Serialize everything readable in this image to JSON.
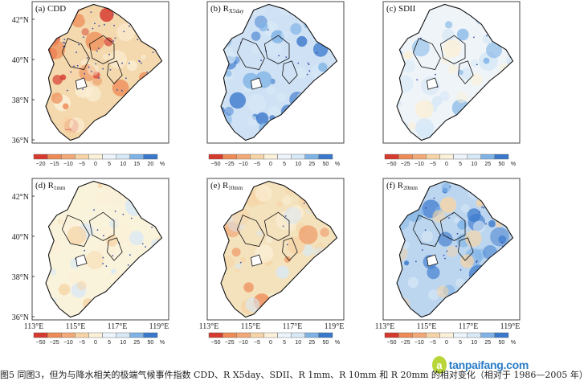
{
  "figure": {
    "caption": "图5 同图3，但为与降水相关的极端气候事件指数 CDD、R X5day、SDII、R 1mm、R 10mm 和 R 20mm 的相对变化（相对于 1986—2005 年）"
  },
  "watermark": {
    "logo": "a",
    "text": "tanpaifang.com"
  },
  "axes": {
    "lat_labels": [
      "42°N",
      "40°N",
      "38°N",
      "36°N"
    ],
    "lon_labels": [
      "113°E",
      "115°E",
      "117°E",
      "119°E"
    ]
  },
  "colors": {
    "dry_strong": "#d63a2e",
    "dry": "#ee8a55",
    "dry_light": "#f6d4a6",
    "neutral": "#fbf0d8",
    "wet_light": "#d7e8f6",
    "wet": "#7fb3e6",
    "wet_strong": "#3a78cc",
    "boundary": "#111111",
    "stipple": "#3a4fa8"
  },
  "panels": [
    {
      "id": "a",
      "title_prefix": "(a) ",
      "title_main": "CDD",
      "title_sub": "",
      "fill": "#f4d9ae",
      "colorbar": {
        "ticks": [
          "−20",
          "−15",
          "−10",
          "−5",
          "0",
          "5",
          "10",
          "15",
          "20",
          "%"
        ]
      }
    },
    {
      "id": "b",
      "title_prefix": "(b) R",
      "title_main": "",
      "title_sub": "X5day",
      "fill": "#cfe2f5",
      "colorbar": {
        "ticks": [
          "−50",
          "−25",
          "−10",
          "−5",
          "0",
          "5",
          "10",
          "25",
          "50",
          "%"
        ]
      }
    },
    {
      "id": "c",
      "title_prefix": "(c) ",
      "title_main": "SDII",
      "title_sub": "",
      "fill": "#eef4f8",
      "colorbar": {
        "ticks": [
          "−50",
          "−25",
          "−10",
          "−5",
          "0",
          "5",
          "10",
          "25",
          "50",
          "%"
        ]
      }
    },
    {
      "id": "d",
      "title_prefix": "(d) R",
      "title_main": "",
      "title_sub": "1mm",
      "fill": "#faf3dc",
      "colorbar": {
        "ticks": [
          "−50",
          "−25",
          "−10",
          "−5",
          "0",
          "5",
          "10",
          "25",
          "50",
          "%"
        ]
      }
    },
    {
      "id": "e",
      "title_prefix": "(e) R",
      "title_main": "",
      "title_sub": "10mm",
      "fill": "#f4e2bd",
      "colorbar": {
        "ticks": [
          "−50",
          "−25",
          "−10",
          "−5",
          "0",
          "5",
          "10",
          "25",
          "50",
          "%"
        ]
      }
    },
    {
      "id": "f",
      "title_prefix": "(f) R",
      "title_main": "",
      "title_sub": "20mm",
      "fill": "#bcd6f0",
      "colorbar": {
        "ticks": [
          "−50",
          "−25",
          "−10",
          "−5",
          "0",
          "5",
          "10",
          "25",
          "50",
          "%"
        ]
      }
    }
  ]
}
